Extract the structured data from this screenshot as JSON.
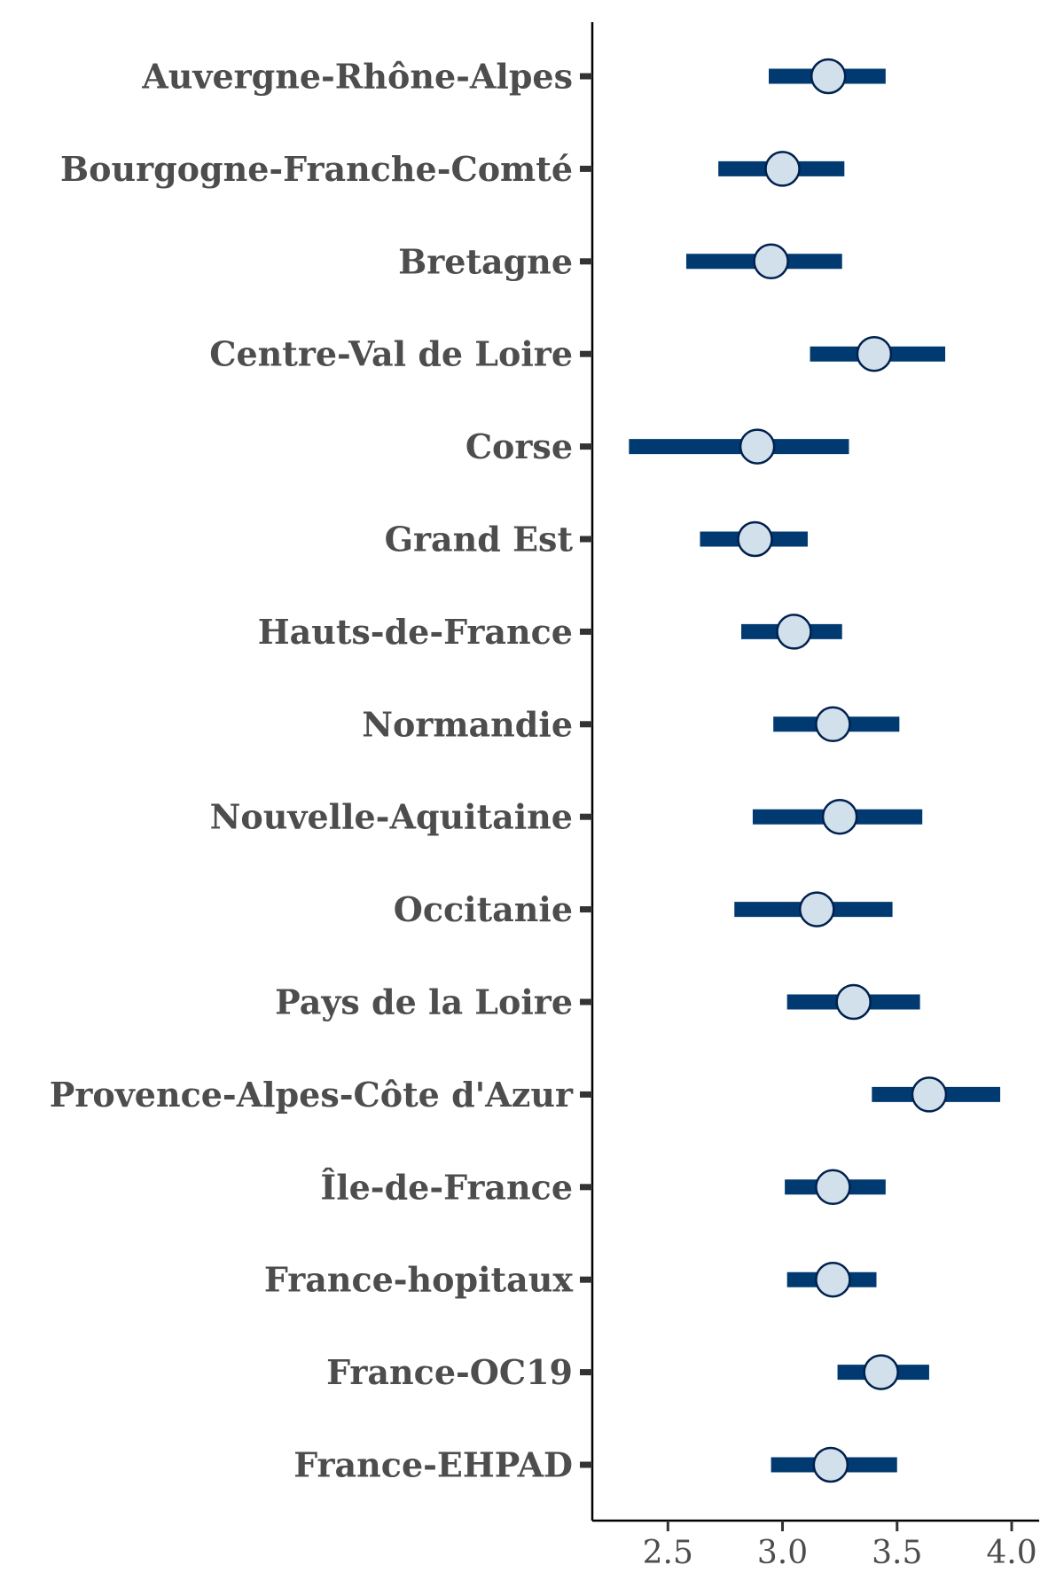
{
  "chart_data": {
    "type": "forest",
    "title": "",
    "xlabel": "",
    "ylabel": "",
    "xlim": [
      2.17,
      4.12
    ],
    "xticks": [
      2.5,
      3.0,
      3.5,
      4.0
    ],
    "xtick_labels": [
      "2.5",
      "3.0",
      "3.5",
      "4.0"
    ],
    "categories": [
      "Auvergne-Rhône-Alpes",
      "Bourgogne-Franche-Comté",
      "Bretagne",
      "Centre-Val de Loire",
      "Corse",
      "Grand Est",
      "Hauts-de-France",
      "Normandie",
      "Nouvelle-Aquitaine",
      "Occitanie",
      "Pays de la Loire",
      "Provence-Alpes-Côte d'Azur",
      "Île-de-France",
      "France-hopitaux",
      "France-OC19",
      "France-EHPAD"
    ],
    "estimates": [
      3.2,
      3.0,
      2.95,
      3.4,
      2.89,
      2.88,
      3.05,
      3.22,
      3.25,
      3.15,
      3.31,
      3.64,
      3.22,
      3.22,
      3.43,
      3.21
    ],
    "lower": [
      2.94,
      2.72,
      2.58,
      3.12,
      2.33,
      2.64,
      2.82,
      2.96,
      2.87,
      2.79,
      3.02,
      3.39,
      3.01,
      3.02,
      3.24,
      2.95
    ],
    "upper": [
      3.45,
      3.27,
      3.26,
      3.71,
      3.29,
      3.11,
      3.26,
      3.51,
      3.61,
      3.48,
      3.6,
      3.95,
      3.45,
      3.41,
      3.64,
      3.5
    ],
    "colors": {
      "interval": "#003a70",
      "point_fill": "#d1e0eb",
      "point_stroke": "#00204e",
      "axis": "#000000",
      "tick": "#333333",
      "label": "#4d4d4d"
    },
    "grid": false,
    "legend": "none"
  }
}
